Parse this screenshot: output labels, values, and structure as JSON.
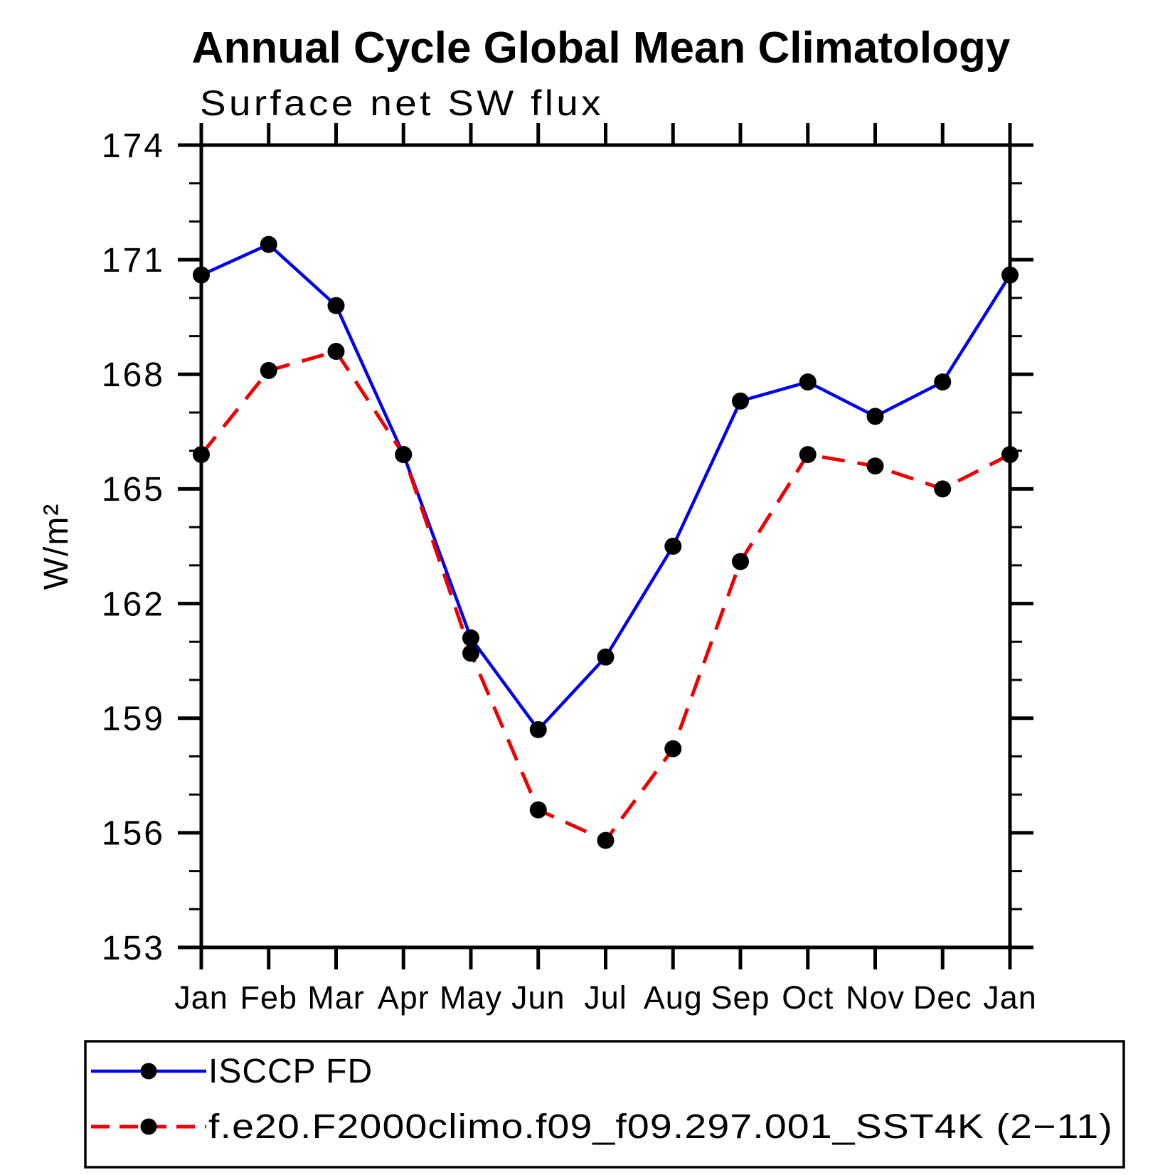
{
  "title": "Annual Cycle Global Mean Climatology",
  "subtitle": "Surface net SW flux",
  "ylabel": "W/m²",
  "legend": {
    "entries": [
      {
        "label": "ISCCP FD"
      },
      {
        "label": "f.e20.F2000climo.f09_f09.297.001_SST4K (2−11)"
      }
    ]
  },
  "chart_data": {
    "type": "line",
    "title": "Annual Cycle Global Mean Climatology",
    "subtitle": "Surface net SW flux",
    "xlabel": "",
    "ylabel": "W/m²",
    "x_categories": [
      "Jan",
      "Feb",
      "Mar",
      "Apr",
      "May",
      "Jun",
      "Jul",
      "Aug",
      "Sep",
      "Oct",
      "Nov",
      "Dec",
      "Jan"
    ],
    "ylim": [
      153,
      174
    ],
    "y_major_ticks": [
      153,
      156,
      159,
      162,
      165,
      168,
      171,
      174
    ],
    "y_minor_step": 1,
    "grid": false,
    "legend_position": "bottom",
    "marker": "circle",
    "marker_color": "#000000",
    "series": [
      {
        "name": "ISCCP FD",
        "color": "#0000ee",
        "style": "solid",
        "values": [
          170.6,
          171.4,
          169.8,
          165.9,
          161.1,
          158.7,
          160.6,
          163.5,
          167.3,
          167.8,
          166.9,
          167.8,
          170.6
        ]
      },
      {
        "name": "f.e20.F2000climo.f09_f09.297.001_SST4K (2−11)",
        "color": "#ee0000",
        "style": "dashed",
        "values": [
          165.9,
          168.1,
          168.6,
          165.9,
          160.7,
          156.6,
          155.8,
          158.2,
          163.1,
          165.9,
          165.6,
          165.0,
          165.9
        ]
      }
    ]
  }
}
